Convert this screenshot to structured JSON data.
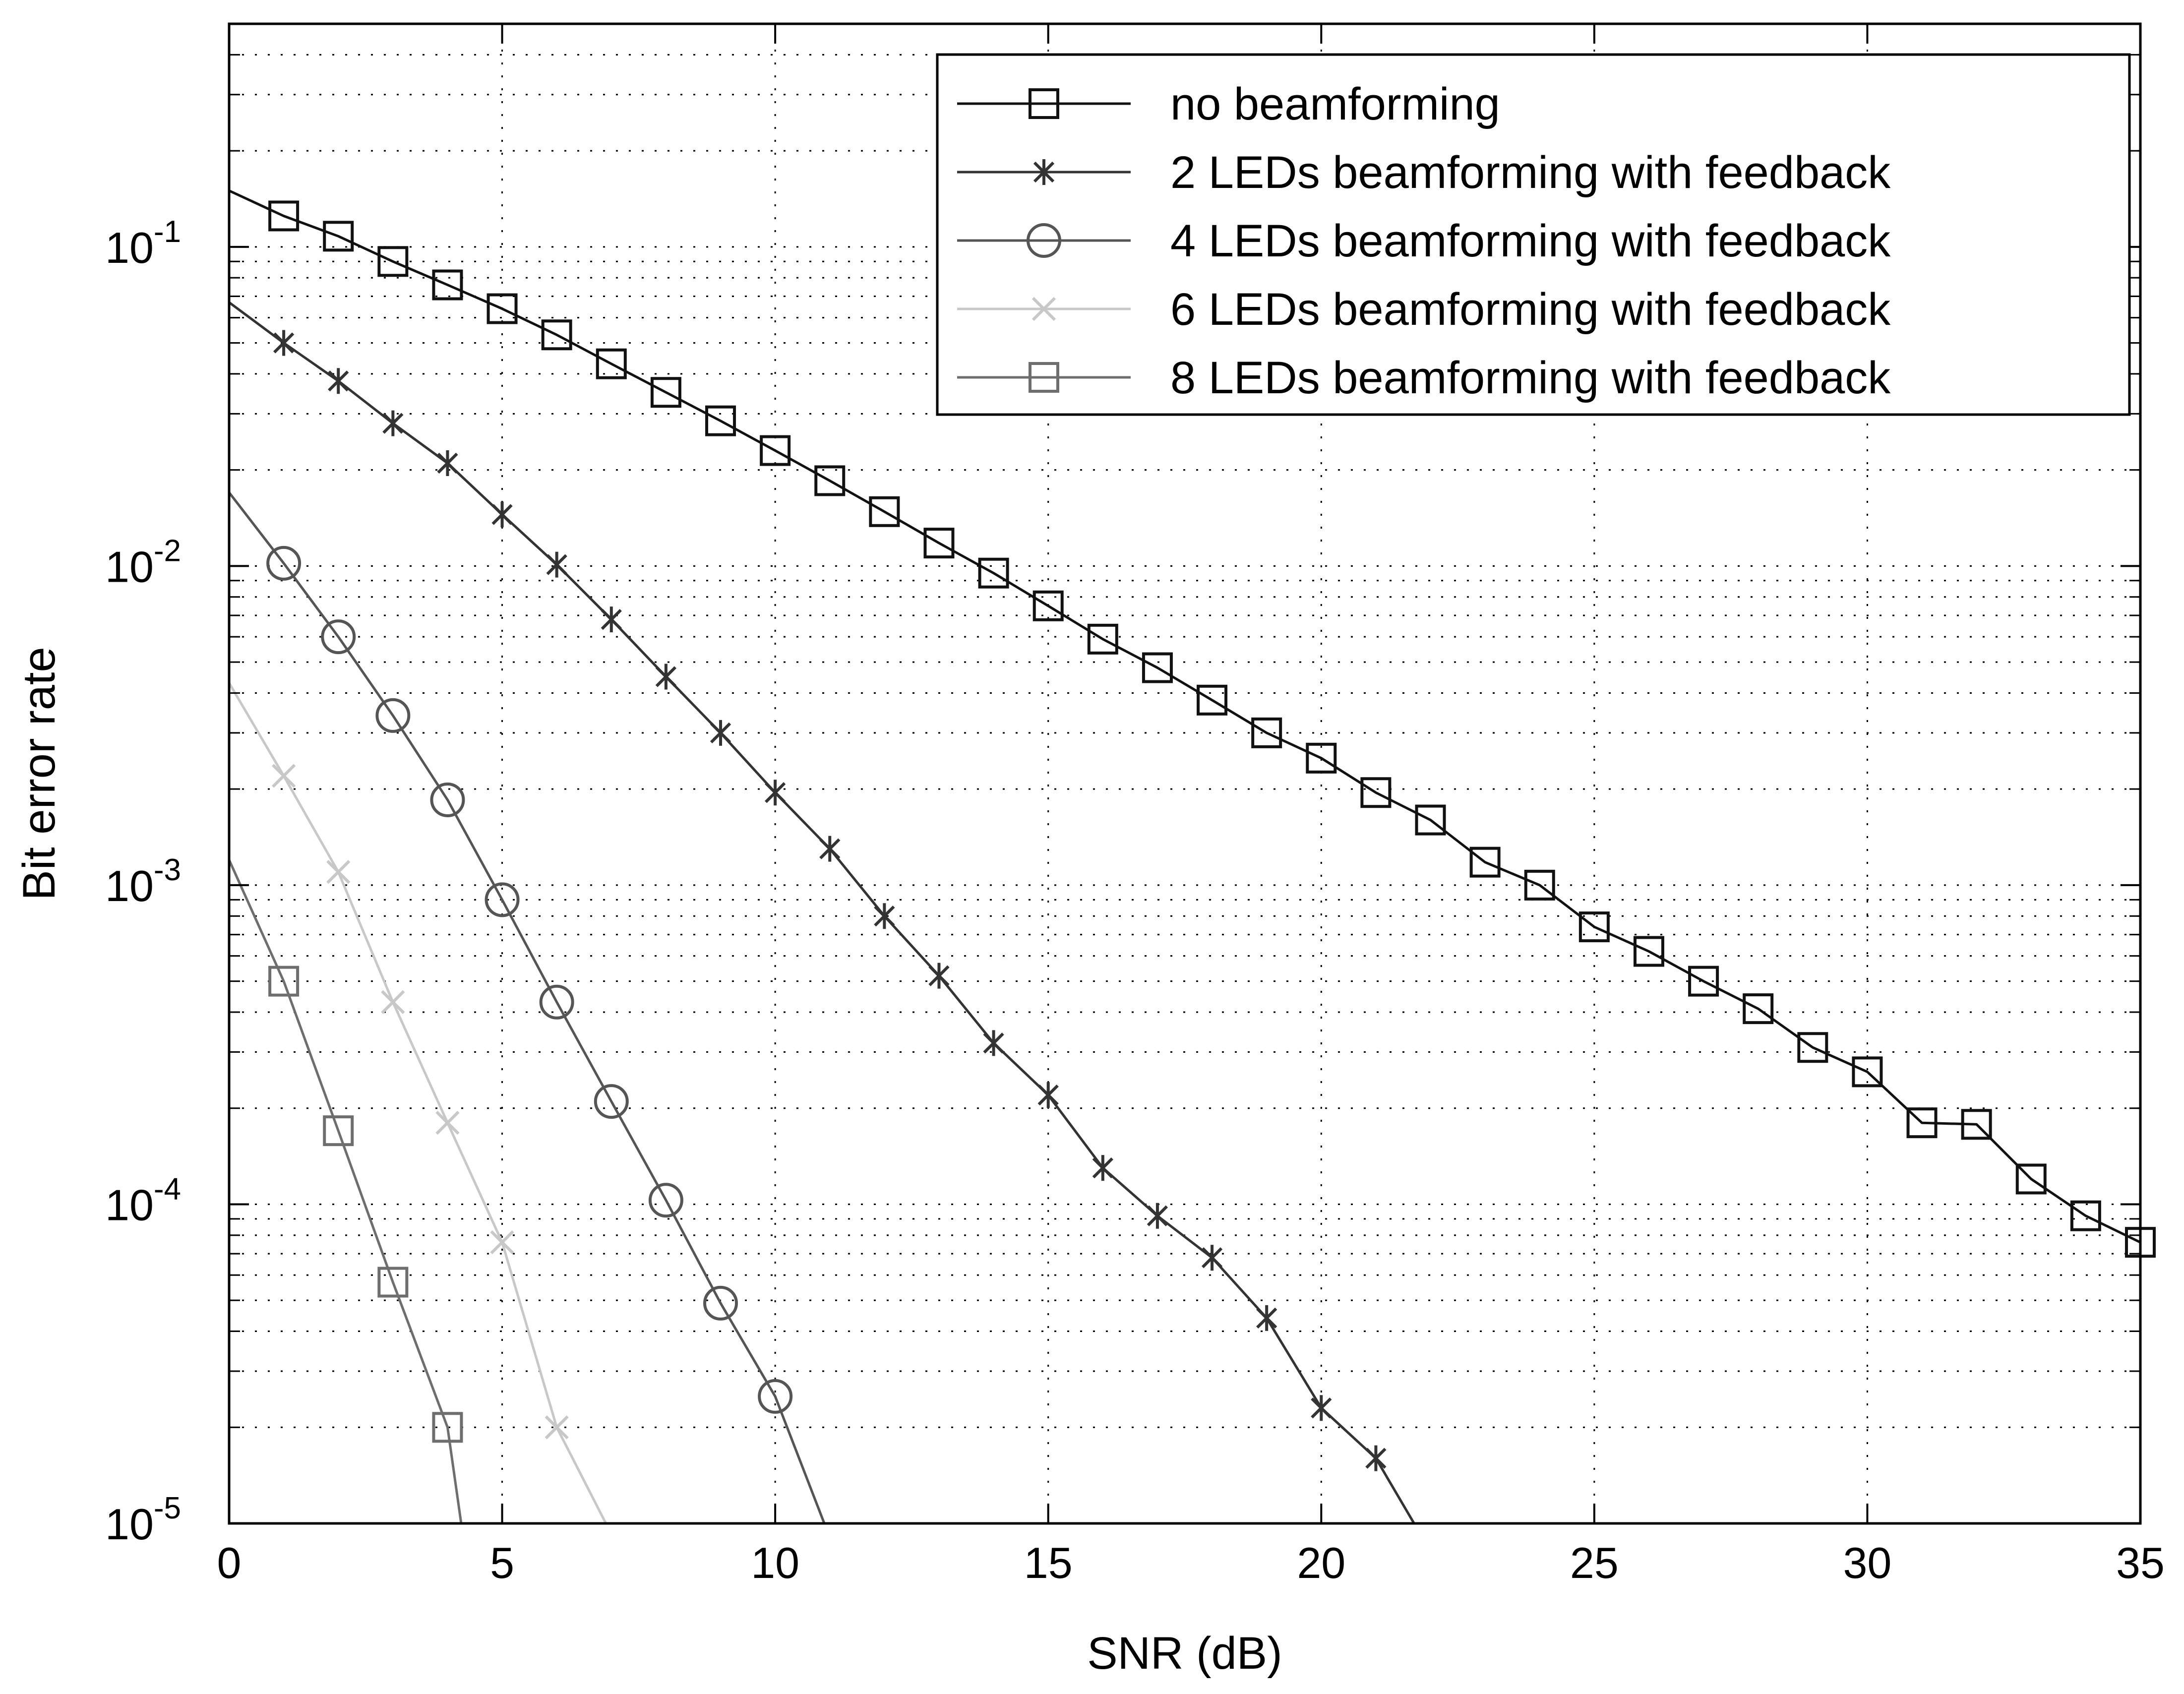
{
  "chart_data": {
    "type": "line",
    "title": "",
    "xlabel": "SNR (dB)",
    "ylabel": "Bit error rate",
    "xlim": [
      0,
      35
    ],
    "ylim": [
      1e-05,
      0.5
    ],
    "yscale": "log",
    "grid": true,
    "legend_position": "top-right",
    "x_ticks": [
      0,
      5,
      10,
      15,
      20,
      25,
      30,
      35
    ],
    "x_tick_labels": [
      "0",
      "5",
      "10",
      "15",
      "20",
      "25",
      "30",
      "35"
    ],
    "y_ticks": [
      1e-05,
      0.0001,
      0.001,
      0.01,
      0.1
    ],
    "y_tick_labels": [
      {
        "base": "10",
        "exp": "-5"
      },
      {
        "base": "10",
        "exp": "-4"
      },
      {
        "base": "10",
        "exp": "-3"
      },
      {
        "base": "10",
        "exp": "-2"
      },
      {
        "base": "10",
        "exp": "-1"
      }
    ],
    "series": [
      {
        "name": "no beamforming",
        "color": "#111111",
        "marker": "square",
        "line_x": [
          0,
          1,
          2,
          3,
          4,
          5,
          6,
          7,
          8,
          9,
          10,
          11,
          12,
          13,
          14,
          15,
          16,
          17,
          18,
          19,
          20,
          21,
          22,
          23,
          24,
          25,
          26,
          27,
          28,
          29,
          30,
          31,
          32,
          33,
          34,
          35
        ],
        "line_y": [
          0.15,
          0.125,
          0.108,
          0.09,
          0.076,
          0.064,
          0.053,
          0.043,
          0.035,
          0.0285,
          0.023,
          0.0185,
          0.0148,
          0.0118,
          0.0095,
          0.0075,
          0.0059,
          0.0048,
          0.0038,
          0.003,
          0.0025,
          0.00195,
          0.0016,
          0.00118,
          0.001,
          0.00074,
          0.00062,
          0.0005,
          0.00041,
          0.00031,
          0.00026,
          0.00018,
          0.000178,
          0.00012,
          9.2e-05,
          7.6e-05
        ],
        "marker_x": [
          1,
          2,
          3,
          4,
          5,
          6,
          7,
          8,
          9,
          10,
          11,
          12,
          13,
          14,
          15,
          16,
          17,
          18,
          19,
          20,
          21,
          22,
          23,
          24,
          25,
          26,
          27,
          28,
          29,
          30,
          31,
          32,
          33,
          34,
          35
        ],
        "marker_y": [
          0.125,
          0.108,
          0.09,
          0.076,
          0.064,
          0.053,
          0.043,
          0.035,
          0.0285,
          0.023,
          0.0185,
          0.0148,
          0.0118,
          0.0095,
          0.0075,
          0.0059,
          0.0048,
          0.0038,
          0.003,
          0.0025,
          0.00195,
          0.0016,
          0.00118,
          0.001,
          0.00074,
          0.00062,
          0.0005,
          0.00041,
          0.00031,
          0.00026,
          0.00018,
          0.000178,
          0.00012,
          9.2e-05,
          7.6e-05
        ]
      },
      {
        "name": "2 LEDs beamforming with feedback",
        "color": "#333333",
        "marker": "asterisk",
        "line_x": [
          0,
          1,
          2,
          3,
          4,
          5,
          6,
          7,
          8,
          9,
          10,
          11,
          12,
          13,
          14,
          15,
          16,
          17,
          18,
          19,
          20,
          21,
          21.7
        ],
        "line_y": [
          0.067,
          0.05,
          0.038,
          0.028,
          0.021,
          0.0145,
          0.0101,
          0.0068,
          0.0045,
          0.003,
          0.00195,
          0.0013,
          0.0008,
          0.00052,
          0.00032,
          0.00022,
          0.00013,
          9.2e-05,
          6.8e-05,
          4.4e-05,
          2.3e-05,
          1.6e-05,
          1e-05
        ],
        "marker_x": [
          1,
          2,
          3,
          4,
          5,
          6,
          7,
          8,
          9,
          10,
          11,
          12,
          13,
          14,
          15,
          16,
          17,
          18,
          19,
          20,
          21
        ],
        "marker_y": [
          0.05,
          0.038,
          0.028,
          0.021,
          0.0145,
          0.0101,
          0.0068,
          0.0045,
          0.003,
          0.00195,
          0.0013,
          0.0008,
          0.00052,
          0.00032,
          0.00022,
          0.00013,
          9.2e-05,
          6.8e-05,
          4.4e-05,
          2.3e-05,
          1.6e-05
        ]
      },
      {
        "name": "4 LEDs beamforming with feedback",
        "color": "#555555",
        "marker": "circle",
        "line_x": [
          0,
          1,
          2,
          3,
          4,
          5,
          6,
          7,
          8,
          9,
          10,
          10.9
        ],
        "line_y": [
          0.017,
          0.0102,
          0.006,
          0.0034,
          0.00185,
          0.0009,
          0.00043,
          0.00021,
          0.000103,
          4.9e-05,
          2.5e-05,
          1e-05
        ],
        "marker_x": [
          1,
          2,
          3,
          4,
          5,
          6,
          7,
          8,
          9,
          10
        ],
        "marker_y": [
          0.0102,
          0.006,
          0.0034,
          0.00185,
          0.0009,
          0.00043,
          0.00021,
          0.000103,
          4.9e-05,
          2.5e-05
        ]
      },
      {
        "name": "6 LEDs beamforming with feedback",
        "color": "#c8c8c8",
        "marker": "x",
        "line_x": [
          0,
          1,
          2,
          3,
          4,
          5,
          6,
          6.9
        ],
        "line_y": [
          0.0043,
          0.0022,
          0.0011,
          0.00043,
          0.00018,
          7.6e-05,
          2e-05,
          1e-05
        ],
        "marker_x": [
          1,
          2,
          3,
          4,
          5,
          6
        ],
        "marker_y": [
          0.0022,
          0.0011,
          0.00043,
          0.00018,
          7.6e-05,
          2e-05
        ]
      },
      {
        "name": "8 LEDs beamforming with feedback",
        "color": "#6e6e6e",
        "marker": "square",
        "line_x": [
          0,
          1,
          2,
          3,
          4,
          4.25
        ],
        "line_y": [
          0.0012,
          0.0005,
          0.00017,
          5.7e-05,
          2e-05,
          1e-05
        ],
        "marker_x": [
          1,
          2,
          3,
          4
        ],
        "marker_y": [
          0.0005,
          0.00017,
          5.7e-05,
          2e-05
        ]
      }
    ]
  }
}
